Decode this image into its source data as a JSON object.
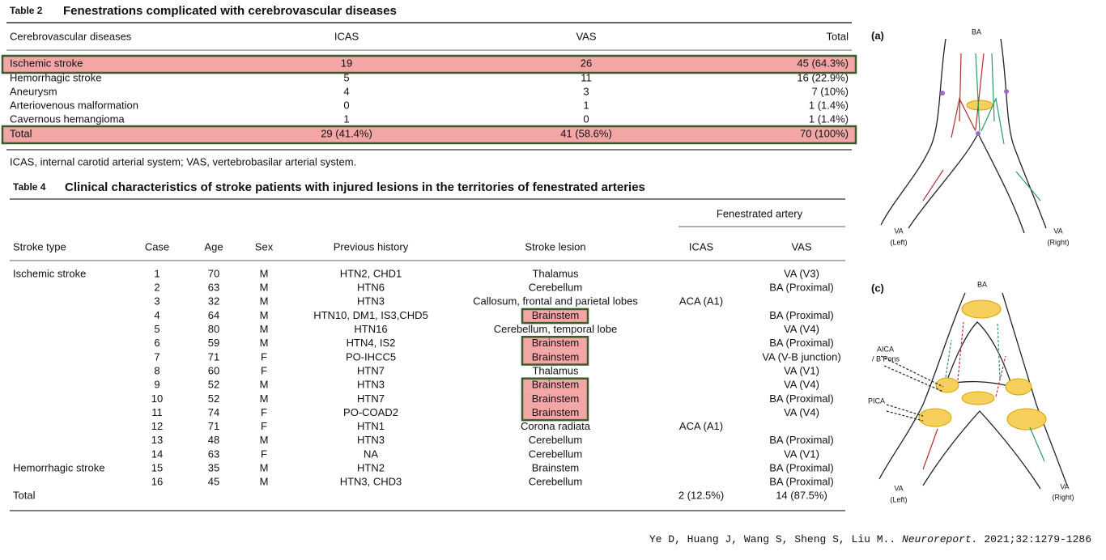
{
  "table2": {
    "label": "Table 2",
    "title": "Fenestrations complicated with cerebrovascular diseases",
    "columns": [
      "Cerebrovascular diseases",
      "ICAS",
      "VAS",
      "Total"
    ],
    "rows": [
      [
        "Ischemic stroke",
        19,
        26,
        "45 (64.3%)"
      ],
      [
        "Hemorrhagic stroke",
        5,
        11,
        "16 (22.9%)"
      ],
      [
        "Aneurysm",
        4,
        3,
        "7 (10%)"
      ],
      [
        "Arteriovenous malformation",
        0,
        1,
        "1 (1.4%)"
      ],
      [
        "Cavernous hemangioma",
        1,
        0,
        "1 (1.4%)"
      ],
      [
        "Total",
        "29 (41.4%)",
        "41 (58.6%)",
        "70 (100%)"
      ]
    ],
    "footnote": "ICAS, internal carotid arterial system; VAS, vertebrobasilar arterial system."
  },
  "table4": {
    "label": "Table 4",
    "title": "Clinical characteristics of stroke patients with injured lesions in the territories of fenestrated arteries",
    "group_header": "Fenestrated artery",
    "columns": [
      "Stroke type",
      "Case",
      "Age",
      "Sex",
      "Previous history",
      "Stroke lesion",
      "ICAS",
      "VAS"
    ],
    "rows": [
      [
        "Ischemic stroke",
        1,
        70,
        "M",
        "HTN2, CHD1",
        "Thalamus",
        null,
        "VA (V3)"
      ],
      [
        null,
        2,
        63,
        "M",
        "HTN6",
        "Cerebellum",
        null,
        "BA (Proximal)"
      ],
      [
        null,
        3,
        32,
        "M",
        "HTN3",
        "Callosum, frontal and parietal lobes",
        "ACA (A1)",
        null
      ],
      [
        null,
        4,
        64,
        "M",
        "HTN10, DM1, IS3,CHD5",
        "Brainstem",
        null,
        "BA (Proximal)"
      ],
      [
        null,
        5,
        80,
        "M",
        "HTN16",
        "Cerebellum, temporal lobe",
        null,
        "VA (V4)"
      ],
      [
        null,
        6,
        59,
        "M",
        "HTN4, IS2",
        "Brainstem",
        null,
        "BA (Proximal)"
      ],
      [
        null,
        7,
        71,
        "F",
        "PO-IHCC5",
        "Brainstem",
        null,
        "VA (V-B junction)"
      ],
      [
        null,
        8,
        60,
        "F",
        "HTN7",
        "Thalamus",
        null,
        "VA (V1)"
      ],
      [
        null,
        9,
        52,
        "M",
        "HTN3",
        "Brainstem",
        null,
        "VA (V4)"
      ],
      [
        null,
        10,
        52,
        "M",
        "HTN7",
        "Brainstem",
        null,
        "BA (Proximal)"
      ],
      [
        null,
        11,
        74,
        "F",
        "PO-COAD2",
        "Brainstem",
        null,
        "VA (V4)"
      ],
      [
        null,
        12,
        71,
        "F",
        "HTN1",
        "Corona radiata",
        "ACA (A1)",
        null
      ],
      [
        null,
        13,
        48,
        "M",
        "HTN3",
        "Cerebellum",
        null,
        "BA (Proximal)"
      ],
      [
        null,
        14,
        63,
        "F",
        "NA",
        "Cerebellum",
        null,
        "VA (V1)"
      ],
      [
        "Hemorrhagic stroke",
        15,
        35,
        "M",
        "HTN2",
        "Brainstem",
        null,
        "BA (Proximal)"
      ],
      [
        null,
        16,
        45,
        "M",
        "HTN3, CHD3",
        "Cerebellum",
        null,
        "BA (Proximal)"
      ],
      [
        "Total",
        null,
        null,
        null,
        null,
        null,
        "2 (12.5%)",
        "14 (87.5%)"
      ]
    ]
  },
  "figure_a": {
    "label": "(a)",
    "top": "BA",
    "left": [
      "VA",
      "(Left)"
    ],
    "right": [
      "VA",
      "(Right)"
    ]
  },
  "figure_c": {
    "label": "(c)",
    "top": "BA",
    "aica": [
      "AICA",
      "/ B Pons"
    ],
    "pica": "PICA",
    "left": [
      "VA",
      "(Left)"
    ],
    "right": [
      "VA",
      "(Right)"
    ]
  },
  "citation": {
    "authors": "Ye D, Huang J, Wang S, Sheng S, Liu M..",
    "journal": "Neuroreport.",
    "details": "2021;32:1279-1286"
  }
}
